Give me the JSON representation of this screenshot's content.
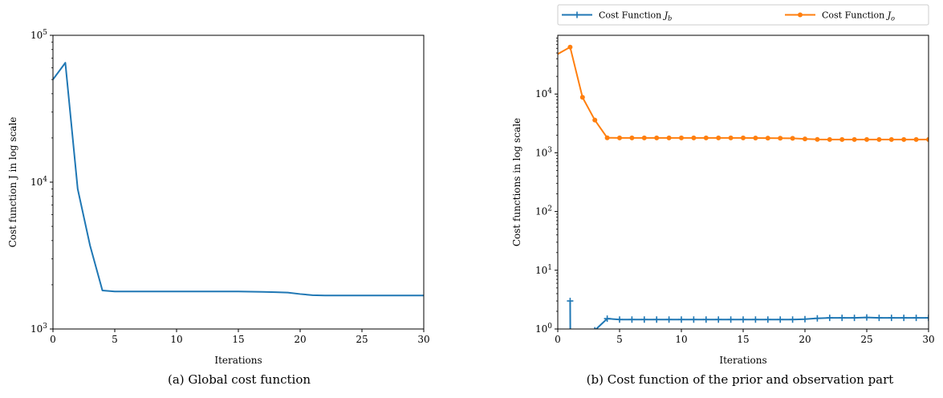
{
  "chart_data": [
    {
      "type": "line",
      "caption": "(a) Global cost function",
      "xlabel": "Iterations",
      "ylabel": "Cost function J in log scale",
      "xlim": [
        0,
        30
      ],
      "ylim": [
        1000,
        100000
      ],
      "yscale": "log",
      "xticks": [
        0,
        5,
        10,
        15,
        20,
        25,
        30
      ],
      "yticks": [
        {
          "value": 1000,
          "base": "10",
          "exp": "3"
        },
        {
          "value": 10000,
          "base": "10",
          "exp": "4"
        },
        {
          "value": 100000,
          "base": "10",
          "exp": "5"
        }
      ],
      "grid": false,
      "color": "#1f77b4",
      "series": [
        {
          "x": [
            0,
            1,
            2,
            3,
            4,
            5,
            6,
            7,
            8,
            9,
            10,
            11,
            12,
            13,
            14,
            15,
            16,
            17,
            18,
            19,
            20,
            21,
            22,
            23,
            24,
            25,
            26,
            27,
            28,
            29,
            30
          ],
          "values": [
            50000,
            65000,
            9000,
            3700,
            1830,
            1800,
            1800,
            1800,
            1800,
            1800,
            1800,
            1800,
            1800,
            1800,
            1800,
            1800,
            1795,
            1790,
            1780,
            1770,
            1730,
            1700,
            1690,
            1690,
            1690,
            1690,
            1690,
            1690,
            1690,
            1690,
            1690
          ]
        }
      ]
    },
    {
      "type": "line",
      "caption": "(b) Cost function of the prior and observation part",
      "xlabel": "Iterations",
      "ylabel": "Cost functions in log scale",
      "xlim": [
        0,
        30
      ],
      "ylim": [
        1,
        100000
      ],
      "yscale": "log",
      "xticks": [
        0,
        5,
        10,
        15,
        20,
        25,
        30
      ],
      "yticks": [
        {
          "value": 1,
          "base": "10",
          "exp": "0"
        },
        {
          "value": 10,
          "base": "10",
          "exp": "1"
        },
        {
          "value": 100,
          "base": "10",
          "exp": "2"
        },
        {
          "value": 1000,
          "base": "10",
          "exp": "3"
        },
        {
          "value": 10000,
          "base": "10",
          "exp": "4"
        }
      ],
      "grid": false,
      "legend": "top, above plot",
      "series": [
        {
          "name": "Cost Function J_b",
          "label_text": "Cost Function ",
          "label_sym": "J",
          "label_sub": "b",
          "color": "#1f77b4",
          "marker": "plus",
          "x": [
            0,
            1,
            1.02,
            2,
            3,
            4,
            5,
            6,
            7,
            8,
            9,
            10,
            11,
            12,
            13,
            14,
            15,
            16,
            17,
            18,
            19,
            20,
            21,
            22,
            23,
            24,
            25,
            26,
            27,
            28,
            29,
            30
          ],
          "values": [
            null,
            3.0,
            0.5,
            0.5,
            0.95,
            1.5,
            1.45,
            1.45,
            1.45,
            1.45,
            1.45,
            1.45,
            1.45,
            1.45,
            1.45,
            1.45,
            1.45,
            1.45,
            1.45,
            1.45,
            1.45,
            1.47,
            1.52,
            1.55,
            1.55,
            1.55,
            1.57,
            1.55,
            1.55,
            1.55,
            1.55,
            1.55
          ],
          "marker_x": [
            1,
            3,
            4,
            5,
            6,
            7,
            8,
            9,
            10,
            11,
            12,
            13,
            14,
            15,
            16,
            17,
            18,
            19,
            20,
            21,
            22,
            23,
            24,
            25,
            26,
            27,
            28,
            29,
            30
          ]
        },
        {
          "name": "Cost Function J_o",
          "label_text": "Cost Function ",
          "label_sym": "J",
          "label_sub": "o",
          "color": "#ff7f0e",
          "marker": "dot",
          "x": [
            0,
            1,
            2,
            3,
            4,
            5,
            6,
            7,
            8,
            9,
            10,
            11,
            12,
            13,
            14,
            15,
            16,
            17,
            18,
            19,
            20,
            21,
            22,
            23,
            24,
            25,
            26,
            27,
            28,
            29,
            30
          ],
          "values": [
            48000,
            63000,
            8800,
            3600,
            1800,
            1790,
            1790,
            1790,
            1790,
            1790,
            1790,
            1790,
            1790,
            1790,
            1790,
            1790,
            1785,
            1780,
            1770,
            1760,
            1720,
            1690,
            1680,
            1680,
            1680,
            1680,
            1680,
            1680,
            1680,
            1680,
            1680
          ],
          "marker_x": [
            1,
            2,
            3,
            4,
            5,
            6,
            7,
            8,
            9,
            10,
            11,
            12,
            13,
            14,
            15,
            16,
            17,
            18,
            19,
            20,
            21,
            22,
            23,
            24,
            25,
            26,
            27,
            28,
            29,
            30
          ]
        }
      ]
    }
  ]
}
